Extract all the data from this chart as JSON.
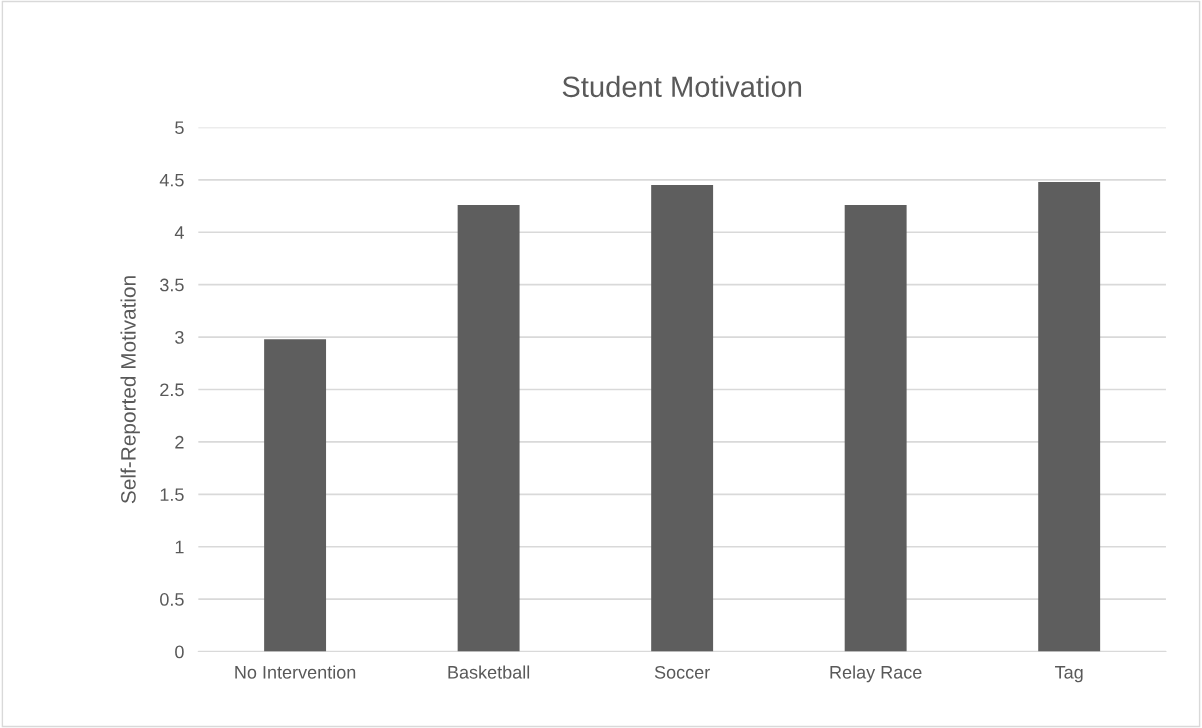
{
  "chart_data": {
    "type": "bar",
    "title": "Student Motivation",
    "ylabel": "Self-Reported Motivation",
    "categories": [
      "No Intervention",
      "Basketball",
      "Soccer",
      "Relay Race",
      "Tag"
    ],
    "values": [
      2.98,
      4.26,
      4.45,
      4.26,
      4.48
    ],
    "color": "#5e5e5e",
    "ylim": [
      0,
      5
    ],
    "yticks": [
      0,
      0.5,
      1,
      1.5,
      2,
      2.5,
      3,
      3.5,
      4,
      4.5,
      5
    ],
    "grid": "y",
    "legend": false
  }
}
